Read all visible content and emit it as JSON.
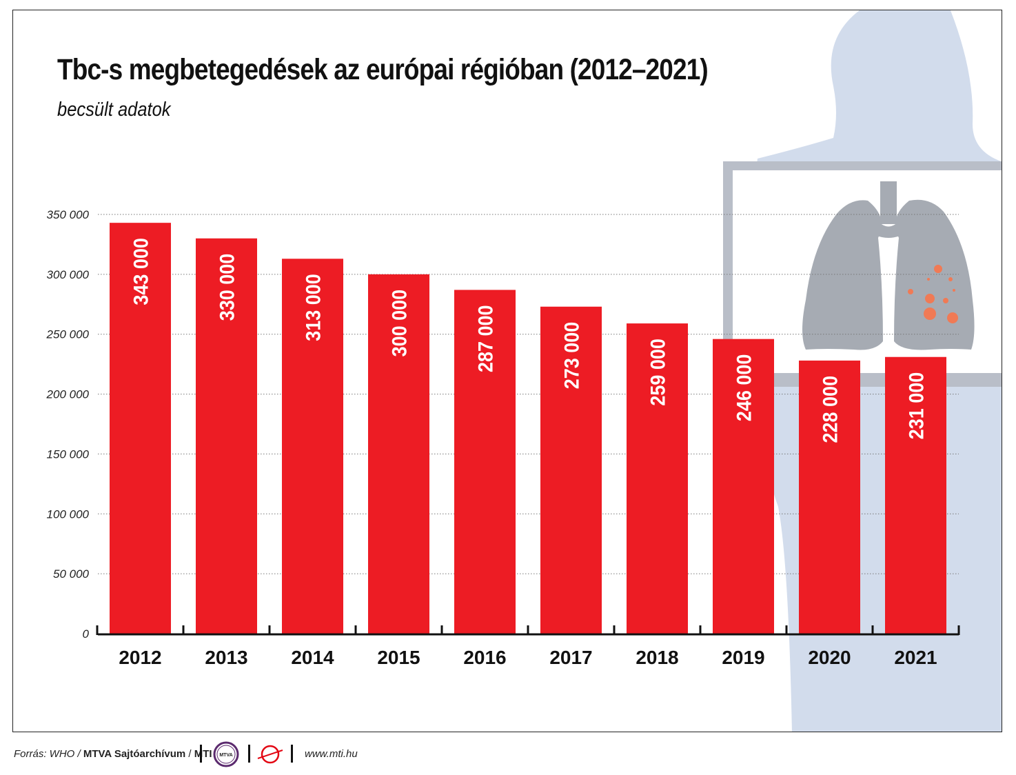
{
  "chart_data": {
    "type": "bar",
    "title": "Tbc-s megbetegedések az európai régióban (2012–2021)",
    "subtitle": "becsült adatok",
    "categories": [
      "2012",
      "2013",
      "2014",
      "2015",
      "2016",
      "2017",
      "2018",
      "2019",
      "2020",
      "2021"
    ],
    "values": [
      343000,
      330000,
      313000,
      300000,
      287000,
      273000,
      259000,
      246000,
      228000,
      231000
    ],
    "value_labels": [
      "343 000",
      "330 000",
      "313 000",
      "300 000",
      "287 000",
      "273 000",
      "259 000",
      "246 000",
      "228 000",
      "231 000"
    ],
    "yticks": [
      0,
      50000,
      100000,
      150000,
      200000,
      250000,
      300000,
      350000
    ],
    "ytick_labels": [
      "0",
      "50 000",
      "100 000",
      "150 000",
      "200 000",
      "250 000",
      "300 000",
      "350 000"
    ],
    "ylim": [
      0,
      350000
    ],
    "grid": true,
    "xlabel": "",
    "ylabel": "",
    "bar_color": "#ed1c24"
  },
  "footer": {
    "source_prefix": "Forrás: WHO / ",
    "source_org": "MTVA Sajtóarchívum",
    "source_sep": " / ",
    "source_agency": "MTI",
    "logo_text": "MTVA",
    "url": "www.mti.hu"
  },
  "colors": {
    "body_silhouette": "#d2dcec",
    "xray_panel": "#b9bec8",
    "lungs": "#a6abb3",
    "lesions": "#f07a55"
  }
}
